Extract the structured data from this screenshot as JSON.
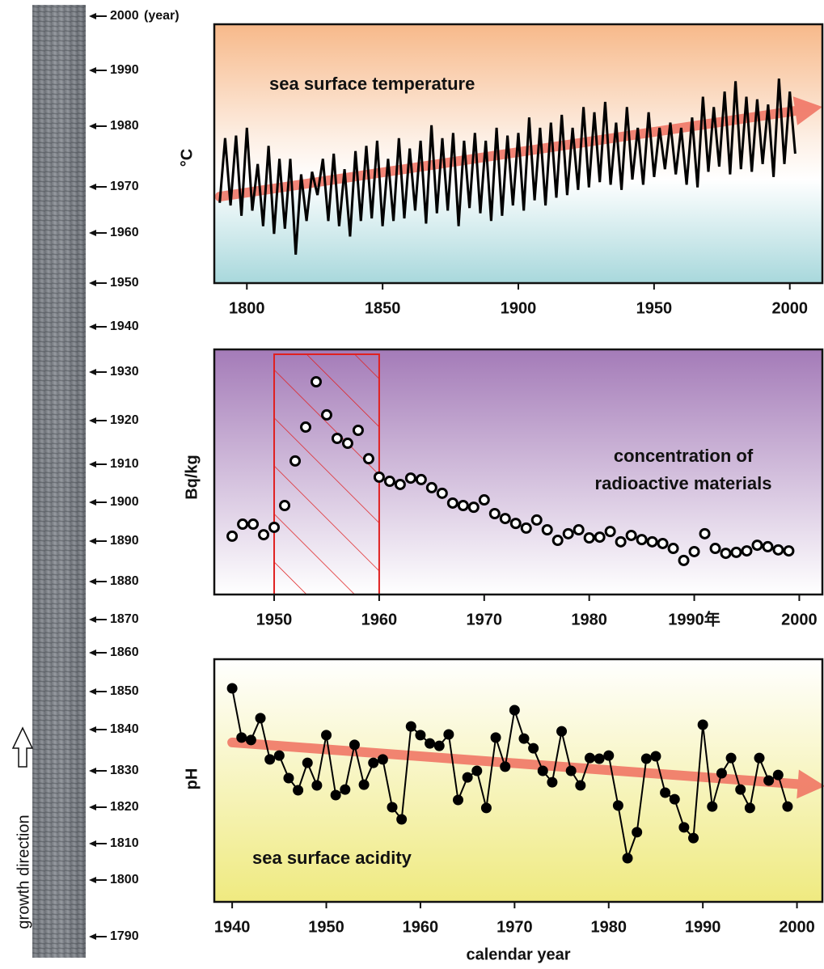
{
  "core": {
    "labels": [
      "2000",
      "1990",
      "1980",
      "1970",
      "1960",
      "1950",
      "1940",
      "1930",
      "1920",
      "1910",
      "1900",
      "1890",
      "1880",
      "1870",
      "1860",
      "1850",
      "1840",
      "1830",
      "1820",
      "1810",
      "1800",
      "1790"
    ],
    "year_unit": "(year)",
    "direction_label": "growth direction"
  },
  "chart_data": [
    {
      "type": "line",
      "ylabel": "°C",
      "annotation": "sea surface temperature",
      "marker": "none",
      "xlim": [
        1788,
        2012
      ],
      "ylim": [
        0,
        100
      ],
      "xticks": [
        1800,
        1850,
        1900,
        1950,
        2000
      ],
      "series": [
        {
          "color": "#000000",
          "x": [
            1790,
            1792,
            1794,
            1796,
            1798,
            1800,
            1802,
            1804,
            1806,
            1808,
            1810,
            1812,
            1814,
            1816,
            1818,
            1820,
            1822,
            1824,
            1826,
            1828,
            1830,
            1832,
            1834,
            1836,
            1838,
            1840,
            1842,
            1844,
            1846,
            1848,
            1850,
            1852,
            1854,
            1856,
            1858,
            1860,
            1862,
            1864,
            1866,
            1868,
            1870,
            1872,
            1874,
            1876,
            1878,
            1880,
            1882,
            1884,
            1886,
            1888,
            1890,
            1892,
            1894,
            1896,
            1898,
            1900,
            1902,
            1904,
            1906,
            1908,
            1910,
            1912,
            1914,
            1916,
            1918,
            1920,
            1922,
            1924,
            1926,
            1928,
            1930,
            1932,
            1934,
            1936,
            1938,
            1940,
            1942,
            1944,
            1946,
            1948,
            1950,
            1952,
            1954,
            1956,
            1958,
            1960,
            1962,
            1964,
            1966,
            1968,
            1970,
            1972,
            1974,
            1976,
            1978,
            1980,
            1982,
            1984,
            1986,
            1988,
            1990,
            1992,
            1994,
            1996,
            1998,
            2000,
            2002
          ],
          "values": [
            31,
            56,
            30,
            57,
            26,
            60,
            28,
            46,
            22,
            53,
            19,
            48,
            21,
            48,
            11,
            42,
            24,
            43,
            34,
            48,
            24,
            50,
            22,
            44,
            18,
            51,
            24,
            53,
            25,
            55,
            22,
            48,
            24,
            56,
            25,
            52,
            28,
            55,
            23,
            61,
            27,
            56,
            28,
            58,
            22,
            55,
            29,
            58,
            27,
            55,
            24,
            60,
            26,
            57,
            30,
            58,
            28,
            64,
            32,
            60,
            30,
            62,
            33,
            65,
            34,
            60,
            36,
            68,
            37,
            66,
            39,
            70,
            38,
            62,
            36,
            68,
            40,
            60,
            38,
            66,
            41,
            60,
            44,
            62,
            42,
            60,
            38,
            64,
            37,
            72,
            43,
            68,
            45,
            74,
            42,
            78,
            44,
            72,
            43,
            71,
            46,
            69,
            41,
            79,
            46,
            74,
            50
          ]
        }
      ],
      "trend": {
        "color": "#f07060",
        "x": [
          1790,
          2012
        ],
        "values": [
          33.4,
          68.1
        ]
      }
    },
    {
      "type": "scatter",
      "ylabel": "Bq/kg",
      "annotation": [
        "concentration of",
        "radioactive materials"
      ],
      "marker": "open",
      "xlim": [
        1944.3,
        2002.2
      ],
      "ylim": [
        0,
        100
      ],
      "xticks": [
        1950,
        1960,
        1970,
        1980,
        {
          "value": 1990,
          "label": "1990年"
        },
        2000
      ],
      "shaded_range": [
        1950,
        1960
      ],
      "shade_color": "#e02020",
      "series": [
        {
          "color": "#000000",
          "x": [
            1946,
            1947,
            1948,
            1949,
            1950,
            1951,
            1952,
            1953,
            1954,
            1955,
            1956,
            1957,
            1958,
            1959,
            1960,
            1961,
            1962,
            1963,
            1964,
            1965,
            1966,
            1967,
            1968,
            1969,
            1970,
            1971,
            1972,
            1973,
            1974,
            1975,
            1976,
            1977,
            1978,
            1979,
            1980,
            1981,
            1982,
            1983,
            1984,
            1985,
            1986,
            1987,
            1988,
            1989,
            1990,
            1991,
            1992,
            1993,
            1994,
            1995,
            1996,
            1997,
            1998,
            1999
          ],
          "values": [
            23.8,
            28.7,
            28.7,
            24.4,
            27.4,
            36.3,
            54.5,
            68.3,
            86.8,
            73.3,
            63.7,
            61.7,
            67.0,
            55.4,
            47.9,
            46.2,
            44.9,
            47.5,
            46.9,
            43.6,
            41.3,
            37.3,
            36.3,
            35.6,
            38.6,
            33.0,
            31.0,
            29.0,
            27.1,
            30.4,
            26.4,
            22.1,
            24.8,
            26.4,
            23.1,
            23.4,
            25.7,
            21.5,
            24.1,
            22.4,
            21.5,
            20.8,
            18.8,
            13.9,
            17.5,
            24.8,
            18.8,
            16.8,
            17.2,
            17.8,
            20.1,
            19.5,
            18.2,
            17.8
          ]
        }
      ]
    },
    {
      "type": "line",
      "ylabel": "pH",
      "xlabel": "calendar year",
      "annotation": "sea surface acidity",
      "marker": "filled",
      "xlim": [
        1938.1,
        2002.7
      ],
      "ylim": [
        0,
        100
      ],
      "xticks": [
        1940,
        1950,
        1960,
        1970,
        1980,
        1990,
        2000
      ],
      "series": [
        {
          "color": "#000000",
          "x": [
            1940,
            1941,
            1942,
            1943,
            1944,
            1945,
            1946,
            1947,
            1948,
            1949,
            1950,
            1951,
            1952,
            1953,
            1954,
            1955,
            1956,
            1957,
            1958,
            1959,
            1960,
            1961,
            1962,
            1963,
            1964,
            1965,
            1966,
            1967,
            1968,
            1969,
            1970,
            1971,
            1972,
            1973,
            1974,
            1975,
            1976,
            1977,
            1978,
            1979,
            1980,
            1981,
            1982,
            1983,
            1984,
            1985,
            1986,
            1987,
            1988,
            1989,
            1990,
            1991,
            1992,
            1993,
            1994,
            1995,
            1996,
            1997,
            1998,
            1999
          ],
          "values": [
            88.0,
            67.7,
            66.7,
            75.7,
            58.7,
            60.3,
            51.0,
            46.0,
            57.3,
            48.0,
            68.7,
            44.0,
            46.3,
            64.7,
            48.3,
            57.3,
            58.7,
            39.0,
            34.0,
            72.3,
            68.7,
            65.3,
            64.3,
            69.0,
            42.0,
            51.3,
            54.0,
            38.7,
            67.7,
            55.7,
            79.0,
            67.3,
            63.3,
            54.0,
            49.3,
            70.3,
            54.0,
            48.0,
            59.3,
            59.0,
            60.3,
            39.7,
            18.0,
            28.7,
            59.0,
            60.0,
            45.0,
            42.3,
            30.7,
            26.3,
            73.0,
            39.3,
            53.0,
            59.3,
            46.3,
            38.7,
            59.3,
            50.0,
            52.3,
            39.3
          ]
        }
      ],
      "trend": {
        "color": "#f07060",
        "x": [
          1940,
          2003
        ],
        "values": [
          65.7,
          47.7
        ]
      }
    }
  ]
}
